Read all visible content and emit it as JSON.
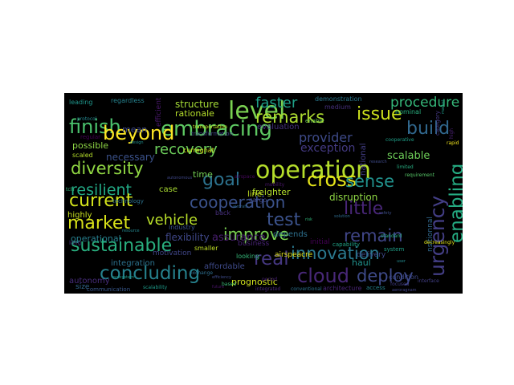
{
  "background": "#000000",
  "page_background": "#ffffff",
  "words": [
    {
      "text": "operation",
      "color": "#b5de2b"
    },
    {
      "text": "embracing",
      "color": "#5ec962"
    },
    {
      "text": "level",
      "color": "#7ad151"
    },
    {
      "text": "finish",
      "color": "#4ac16d"
    },
    {
      "text": "beyond",
      "color": "#fde725"
    },
    {
      "text": "remarks",
      "color": "#addc30"
    },
    {
      "text": "issue",
      "color": "#cde11d"
    },
    {
      "text": "faster",
      "color": "#1fa088"
    },
    {
      "text": "procedure",
      "color": "#35b779"
    },
    {
      "text": "build",
      "color": "#31688e"
    },
    {
      "text": "provider",
      "color": "#3e4a89"
    },
    {
      "text": "recovery",
      "color": "#6ccd5a"
    },
    {
      "text": "diversity",
      "color": "#90d743"
    },
    {
      "text": "goal",
      "color": "#2c728e"
    },
    {
      "text": "cross",
      "color": "#e5e419"
    },
    {
      "text": "sense",
      "color": "#21918c"
    },
    {
      "text": "resilient",
      "color": "#22a884"
    },
    {
      "text": "current",
      "color": "#d2e21b"
    },
    {
      "text": "cooperation",
      "color": "#3b528b"
    },
    {
      "text": "market",
      "color": "#d8e219"
    },
    {
      "text": "vehicle",
      "color": "#b8de29"
    },
    {
      "text": "test",
      "color": "#3b528b"
    },
    {
      "text": "little",
      "color": "#482677"
    },
    {
      "text": "improve",
      "color": "#7ad151"
    },
    {
      "text": "remain",
      "color": "#404688"
    },
    {
      "text": "sustainable",
      "color": "#29af7f"
    },
    {
      "text": "real",
      "color": "#453781"
    },
    {
      "text": "innovation",
      "color": "#2a788e"
    },
    {
      "text": "concluding",
      "color": "#26828e"
    },
    {
      "text": "cloud",
      "color": "#482878"
    },
    {
      "text": "deploy",
      "color": "#3e4a89"
    },
    {
      "text": "urgency",
      "color": "#433e85"
    },
    {
      "text": "enabling",
      "color": "#25ab82"
    },
    {
      "text": "exception",
      "color": "#443a83"
    },
    {
      "text": "scalable",
      "color": "#6ece58"
    },
    {
      "text": "disruption",
      "color": "#8fd744"
    },
    {
      "text": "freighter",
      "color": "#b2dd2c"
    },
    {
      "text": "line",
      "color": "#c2df23"
    },
    {
      "text": "prognostic",
      "color": "#d0e11c"
    },
    {
      "text": "structure",
      "color": "#a5db36"
    },
    {
      "text": "flexibility",
      "color": "#3f4788"
    },
    {
      "text": "operational",
      "color": "#277f8e"
    },
    {
      "text": "assurance",
      "color": "#481f70"
    },
    {
      "text": "necessary",
      "color": "#3b528b"
    },
    {
      "text": "time",
      "color": "#75d054"
    },
    {
      "text": "depends",
      "color": "#2d708e"
    },
    {
      "text": "haul",
      "color": "#21918c"
    },
    {
      "text": "case",
      "color": "#aadc32"
    },
    {
      "text": "rationale",
      "color": "#b5de2b"
    },
    {
      "text": "evaluation",
      "color": "#46327e"
    },
    {
      "text": "mean",
      "color": "#3e4989"
    },
    {
      "text": "possible",
      "color": "#8ed645"
    },
    {
      "text": "highly",
      "color": "#c8e020"
    },
    {
      "text": "integration",
      "color": "#2c728e"
    },
    {
      "text": "autonomy",
      "color": "#472d7b"
    },
    {
      "text": "size",
      "color": "#31688e"
    },
    {
      "text": "affordable",
      "color": "#3e4a89"
    },
    {
      "text": "business",
      "color": "#482475"
    },
    {
      "text": "motivation",
      "color": "#404688"
    },
    {
      "text": "airspeacre",
      "color": "#e2e418"
    },
    {
      "text": "initial",
      "color": "#440154"
    },
    {
      "text": "delivery",
      "color": "#3e4989"
    },
    {
      "text": "national",
      "color": "#433e85"
    },
    {
      "text": "leading",
      "color": "#1f958b"
    },
    {
      "text": "regardless",
      "color": "#26828e"
    },
    {
      "text": "efficient",
      "color": "#48186a"
    },
    {
      "text": "architecture",
      "color": "#482576"
    },
    {
      "text": "medium",
      "color": "#46307e"
    },
    {
      "text": "demonstration",
      "color": "#2a788e"
    },
    {
      "text": "nominal",
      "color": "#29af7f"
    },
    {
      "text": "category",
      "color": "#443983"
    },
    {
      "text": "condition",
      "color": "#3e4989"
    },
    {
      "text": "nsitionnal",
      "color": "#31688e"
    },
    {
      "text": "integrated",
      "color": "#482878"
    },
    {
      "text": "conventional",
      "color": "#2d708e"
    },
    {
      "text": "transformation",
      "color": "#404688"
    },
    {
      "text": "industry",
      "color": "#3b528b"
    },
    {
      "text": "smaller",
      "color": "#c0df25"
    },
    {
      "text": "back",
      "color": "#472f7d"
    },
    {
      "text": "communication",
      "color": "#38588c"
    },
    {
      "text": "scaled",
      "color": "#b5de2b"
    },
    {
      "text": "curregnat",
      "color": "#d5e21a"
    },
    {
      "text": "cargo",
      "color": "#3f4788"
    },
    {
      "text": "looking",
      "color": "#35b779"
    },
    {
      "text": "technology",
      "color": "#2c728e"
    },
    {
      "text": "long",
      "color": "#46337f"
    },
    {
      "text": "enable",
      "color": "#6ccd5a"
    },
    {
      "text": "access",
      "color": "#25848e"
    },
    {
      "text": "capability",
      "color": "#20a386"
    },
    {
      "text": "system",
      "color": "#1fa088"
    },
    {
      "text": "regular",
      "color": "#440154"
    },
    {
      "text": "protocol",
      "color": "#24868e"
    },
    {
      "text": "airspace",
      "color": "#46085c"
    },
    {
      "text": "mobility",
      "color": "#481769"
    },
    {
      "text": "exchange",
      "color": "#2e6e8e"
    },
    {
      "text": "based",
      "color": "#3aba76"
    },
    {
      "text": "scalability",
      "color": "#1e9b8a"
    },
    {
      "text": "tcls",
      "color": "#32b67a"
    },
    {
      "text": "period",
      "color": "#482173"
    },
    {
      "text": "limited",
      "color": "#27ad81"
    },
    {
      "text": "standard",
      "color": "#26ad81"
    },
    {
      "text": "focused",
      "color": "#433e85"
    },
    {
      "text": "interface",
      "color": "#423f85"
    },
    {
      "text": "high",
      "color": "#482071"
    },
    {
      "text": "requirement",
      "color": "#56c667"
    },
    {
      "text": "cooperative",
      "color": "#1f9f88"
    },
    {
      "text": "aeroragnam",
      "color": "#414487"
    },
    {
      "text": "transportation",
      "color": "#c5e021"
    },
    {
      "text": "decreasingly",
      "color": "#e2e418"
    },
    {
      "text": "rapid",
      "color": "#f1e51d"
    },
    {
      "text": "future",
      "color": "#481467"
    },
    {
      "text": "autonomous",
      "color": "#3f4788"
    },
    {
      "text": "aircraft",
      "color": "#2f6b8e"
    },
    {
      "text": "efficiency",
      "color": "#3e4c8a"
    },
    {
      "text": "ecosystem",
      "color": "#1e9c89"
    },
    {
      "text": "resource",
      "color": "#24878e"
    },
    {
      "text": "solution",
      "color": "#2f6c8e"
    },
    {
      "text": "research",
      "color": "#3e4a89"
    },
    {
      "text": "design",
      "color": "#218f8d"
    },
    {
      "text": "risk",
      "color": "#30b57a"
    },
    {
      "text": "market",
      "color": "#1f9e89"
    },
    {
      "text": "safety",
      "color": "#3d4e8a"
    },
    {
      "text": "user",
      "color": "#23898e"
    }
  ]
}
